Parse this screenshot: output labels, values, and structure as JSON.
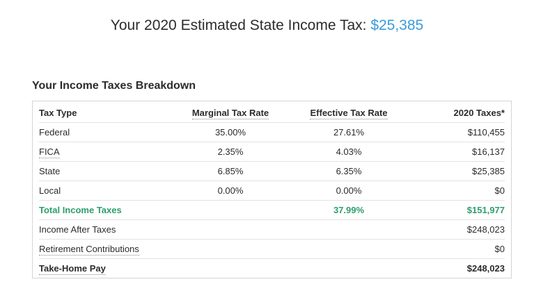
{
  "headline": {
    "text": "Your 2020 Estimated State Income Tax: ",
    "amount": "$25,385",
    "amount_color": "#3a9bd9"
  },
  "breakdown": {
    "title": "Your Income Taxes Breakdown",
    "columns": {
      "tax_type": "Tax Type",
      "marginal": "Marginal Tax Rate",
      "effective": "Effective Tax Rate",
      "taxes": "2020 Taxes*"
    },
    "rows": [
      {
        "type": "Federal",
        "marginal": "35.00%",
        "effective": "27.61%",
        "taxes": "$110,455"
      },
      {
        "type": "FICA",
        "marginal": "2.35%",
        "effective": "4.03%",
        "taxes": "$16,137"
      },
      {
        "type": "State",
        "marginal": "6.85%",
        "effective": "6.35%",
        "taxes": "$25,385"
      },
      {
        "type": "Local",
        "marginal": "0.00%",
        "effective": "0.00%",
        "taxes": "$0"
      },
      {
        "type": "Total Income Taxes",
        "marginal": "",
        "effective": "37.99%",
        "taxes": "$151,977"
      },
      {
        "type": "Income After Taxes",
        "marginal": "",
        "effective": "",
        "taxes": "$248,023"
      },
      {
        "type": "Retirement Contributions",
        "marginal": "",
        "effective": "",
        "taxes": "$0"
      },
      {
        "type": "Take-Home Pay",
        "marginal": "",
        "effective": "",
        "taxes": "$248,023"
      }
    ],
    "total_color": "#2e9e6b"
  }
}
